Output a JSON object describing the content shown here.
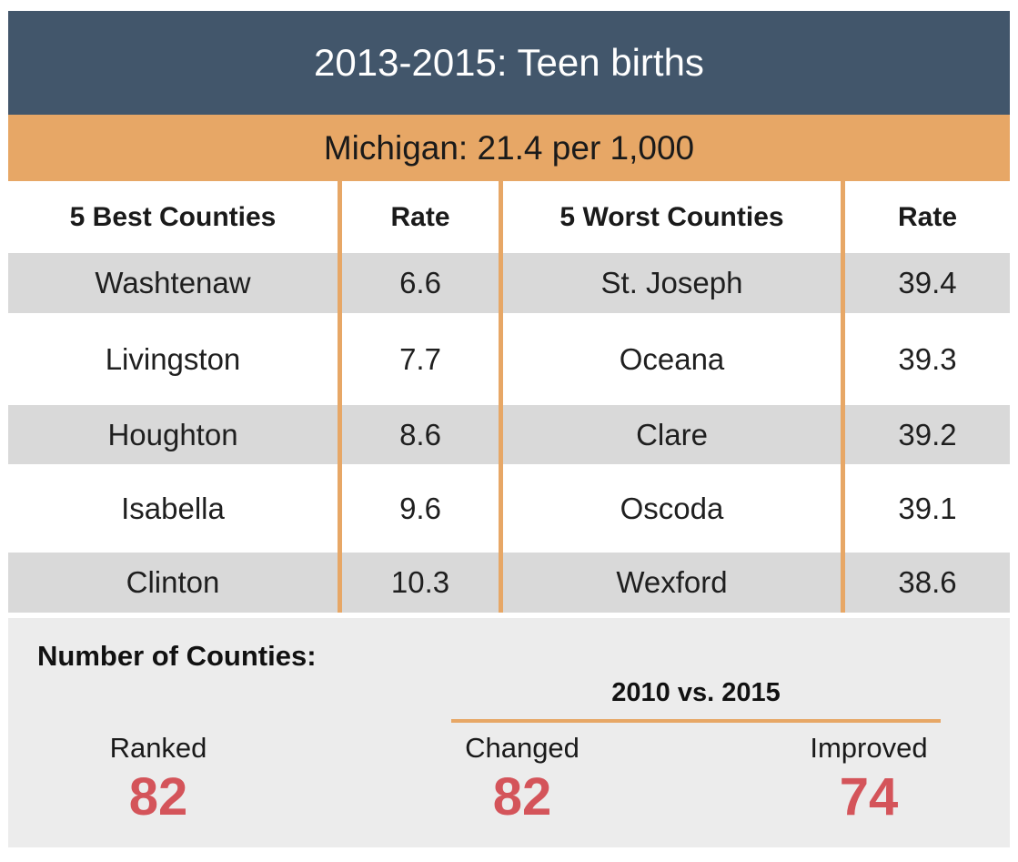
{
  "title": "2013-2015: Teen births",
  "subtitle": "Michigan: 21.4 per 1,000",
  "table": {
    "headers": [
      "5 Best Counties",
      "Rate",
      "5 Worst Counties",
      "Rate"
    ],
    "rows": [
      {
        "best": "Washtenaw",
        "best_rate": "6.6",
        "worst": "St. Joseph",
        "worst_rate": "39.4"
      },
      {
        "best": "Livingston",
        "best_rate": "7.7",
        "worst": "Oceana",
        "worst_rate": "39.3"
      },
      {
        "best": "Houghton",
        "best_rate": "8.6",
        "worst": "Clare",
        "worst_rate": "39.2"
      },
      {
        "best": "Isabella",
        "best_rate": "9.6",
        "worst": "Oscoda",
        "worst_rate": "39.1"
      },
      {
        "best": "Clinton",
        "best_rate": "10.3",
        "worst": "Wexford",
        "worst_rate": "38.6"
      }
    ]
  },
  "footer": {
    "heading": "Number of Counties:",
    "comparison_label": "2010 vs. 2015",
    "stats": [
      {
        "label": "Ranked",
        "value": "82"
      },
      {
        "label": "Changed",
        "value": "82"
      },
      {
        "label": "Improved",
        "value": "74"
      }
    ]
  },
  "colors": {
    "header_bg": "#42566b",
    "accent_orange": "#e7a766",
    "row_gray": "#d9d9d9",
    "footer_bg": "#ececec",
    "stat_red": "#d4545a",
    "title_text": "#ffffff",
    "body_text": "#1f1f1f"
  },
  "chart_data": {
    "type": "table",
    "title": "2013-2015: Teen births",
    "subtitle": "Michigan: 21.4 per 1,000",
    "state": "Michigan",
    "state_rate_per_1000": 21.4,
    "columns": [
      "5 Best Counties",
      "Rate",
      "5 Worst Counties",
      "Rate"
    ],
    "best_counties": [
      {
        "county": "Washtenaw",
        "rate": 6.6
      },
      {
        "county": "Livingston",
        "rate": 7.7
      },
      {
        "county": "Houghton",
        "rate": 8.6
      },
      {
        "county": "Isabella",
        "rate": 9.6
      },
      {
        "county": "Clinton",
        "rate": 10.3
      }
    ],
    "worst_counties": [
      {
        "county": "St. Joseph",
        "rate": 39.4
      },
      {
        "county": "Oceana",
        "rate": 39.3
      },
      {
        "county": "Clare",
        "rate": 39.2
      },
      {
        "county": "Oscoda",
        "rate": 39.1
      },
      {
        "county": "Wexford",
        "rate": 38.6
      }
    ],
    "number_of_counties": {
      "comparison_period": "2010 vs. 2015",
      "ranked": 82,
      "changed": 82,
      "improved": 74
    }
  }
}
